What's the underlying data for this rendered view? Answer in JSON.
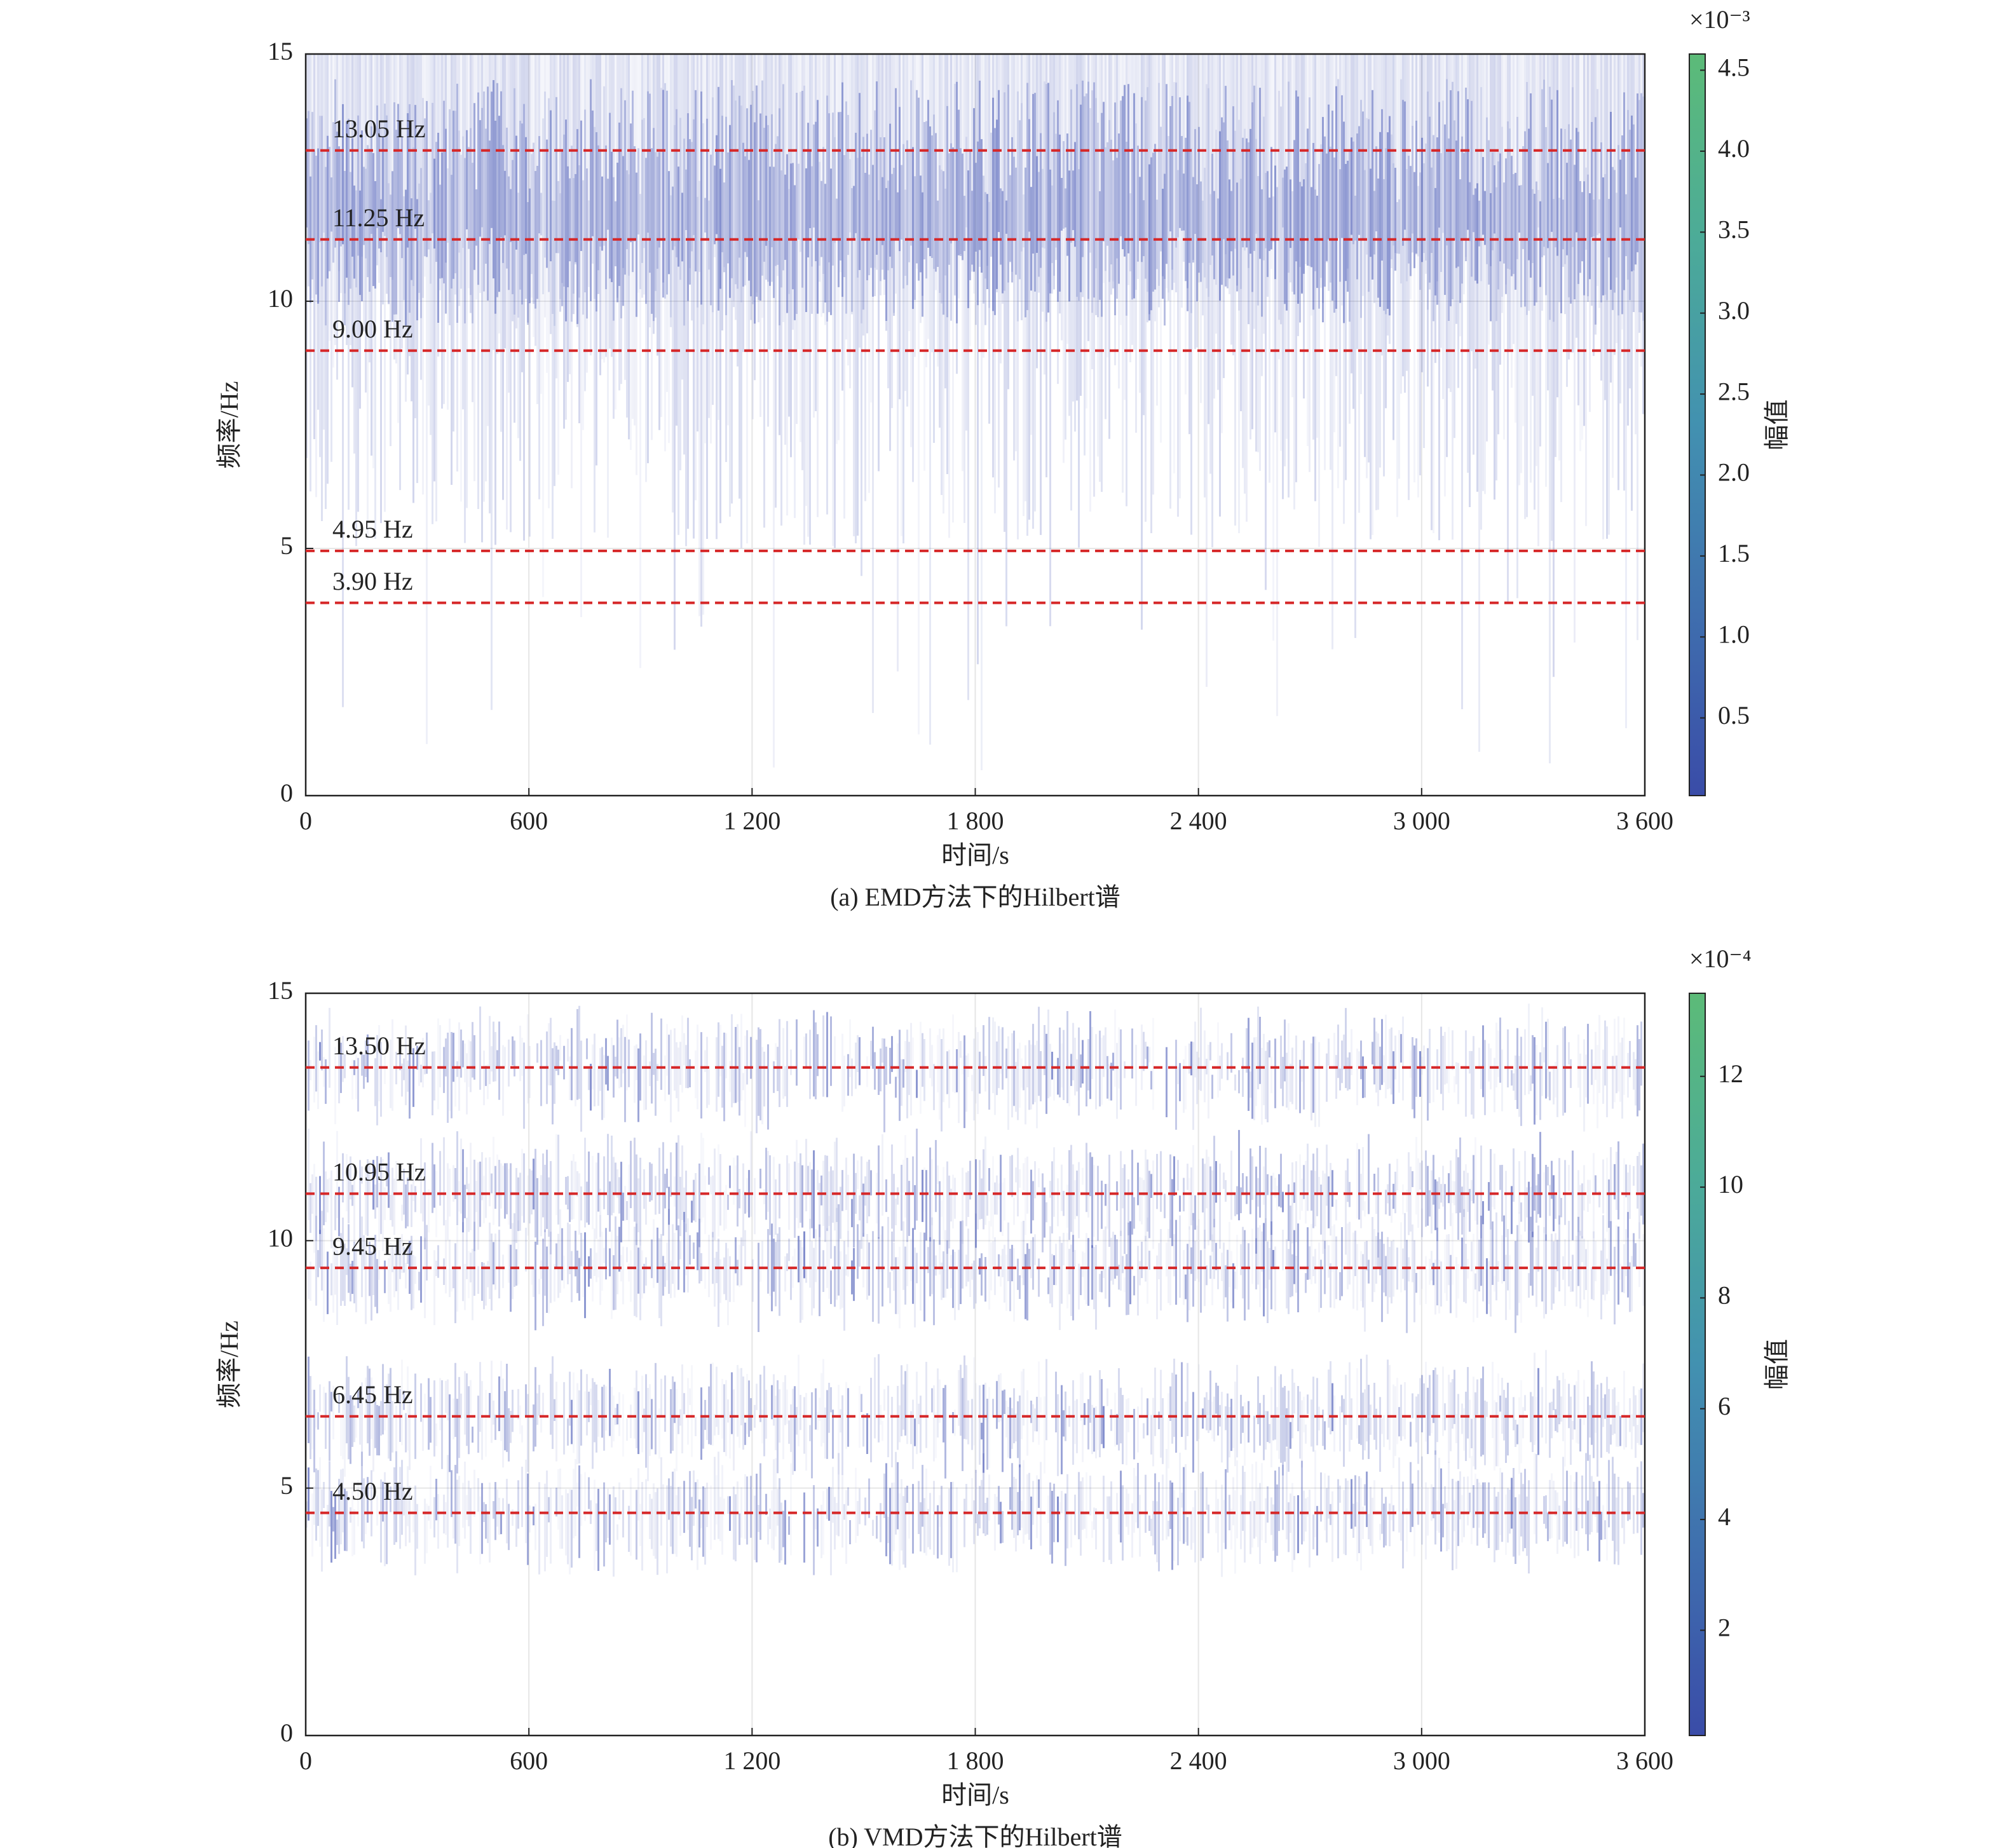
{
  "chart_data": [
    {
      "type": "hilbert_spectrum",
      "caption": "(a) EMD方法下的Hilbert谱",
      "xlabel": "时间/s",
      "ylabel": "频率/Hz",
      "xlim": [
        0,
        3600
      ],
      "xticks": [
        0,
        600,
        {
          "value": 1200,
          "label": "1 200"
        },
        {
          "value": 1800,
          "label": "1 800"
        },
        {
          "value": 2400,
          "label": "2 400"
        },
        {
          "value": 3000,
          "label": "3 000"
        },
        {
          "value": 3600,
          "label": "3 600"
        }
      ],
      "ylim": [
        0,
        15
      ],
      "yticks": [
        0,
        5,
        10,
        15
      ],
      "grid": true,
      "spectrum_color": "#3a4cb0",
      "hline_color": "#d62728",
      "hlines": [
        {
          "value": 13.05,
          "label": "13.05 Hz"
        },
        {
          "value": 11.25,
          "label": "11.25 Hz"
        },
        {
          "value": 9.0,
          "label": "9.00 Hz"
        },
        {
          "value": 4.95,
          "label": "4.95 Hz"
        },
        {
          "value": 3.9,
          "label": "3.90 Hz"
        }
      ],
      "colorbar": {
        "label": "幅值",
        "scale": "×10⁻³",
        "lim": [
          0.02,
          4.6
        ],
        "ticks": [
          0.5,
          {
            "value": 1,
            "label": "1.0"
          },
          1.5,
          {
            "value": 2,
            "label": "2.0"
          },
          2.5,
          {
            "value": 3,
            "label": "3.0"
          },
          3.5,
          {
            "value": 4,
            "label": "4.0"
          },
          4.5
        ],
        "colors": [
          "#3a4ca8",
          "#3f6fae",
          "#4291b0",
          "#4cab98",
          "#5cbb78"
        ]
      }
    },
    {
      "type": "hilbert_spectrum",
      "caption": "(b) VMD方法下的Hilbert谱",
      "xlabel": "时间/s",
      "ylabel": "频率/Hz",
      "xlim": [
        0,
        3600
      ],
      "xticks": [
        0,
        600,
        {
          "value": 1200,
          "label": "1 200"
        },
        {
          "value": 1800,
          "label": "1 800"
        },
        {
          "value": 2400,
          "label": "2 400"
        },
        {
          "value": 3000,
          "label": "3 000"
        },
        {
          "value": 3600,
          "label": "3 600"
        }
      ],
      "ylim": [
        0,
        15
      ],
      "yticks": [
        0,
        5,
        10,
        15
      ],
      "grid": true,
      "spectrum_color": "#3a4cb0",
      "hline_color": "#d62728",
      "hlines": [
        {
          "value": 13.5,
          "label": "13.50 Hz"
        },
        {
          "value": 10.95,
          "label": "10.95 Hz"
        },
        {
          "value": 9.45,
          "label": "9.45 Hz"
        },
        {
          "value": 6.45,
          "label": "6.45 Hz"
        },
        {
          "value": 4.5,
          "label": "4.50 Hz"
        }
      ],
      "colorbar": {
        "label": "幅值",
        "scale": "×10⁻⁴",
        "lim": [
          0.1,
          13.5
        ],
        "ticks": [
          2,
          4,
          6,
          8,
          10,
          12
        ],
        "colors": [
          "#3a4ca8",
          "#3f6fae",
          "#4291b0",
          "#4cab98",
          "#5cbb78"
        ]
      }
    }
  ]
}
